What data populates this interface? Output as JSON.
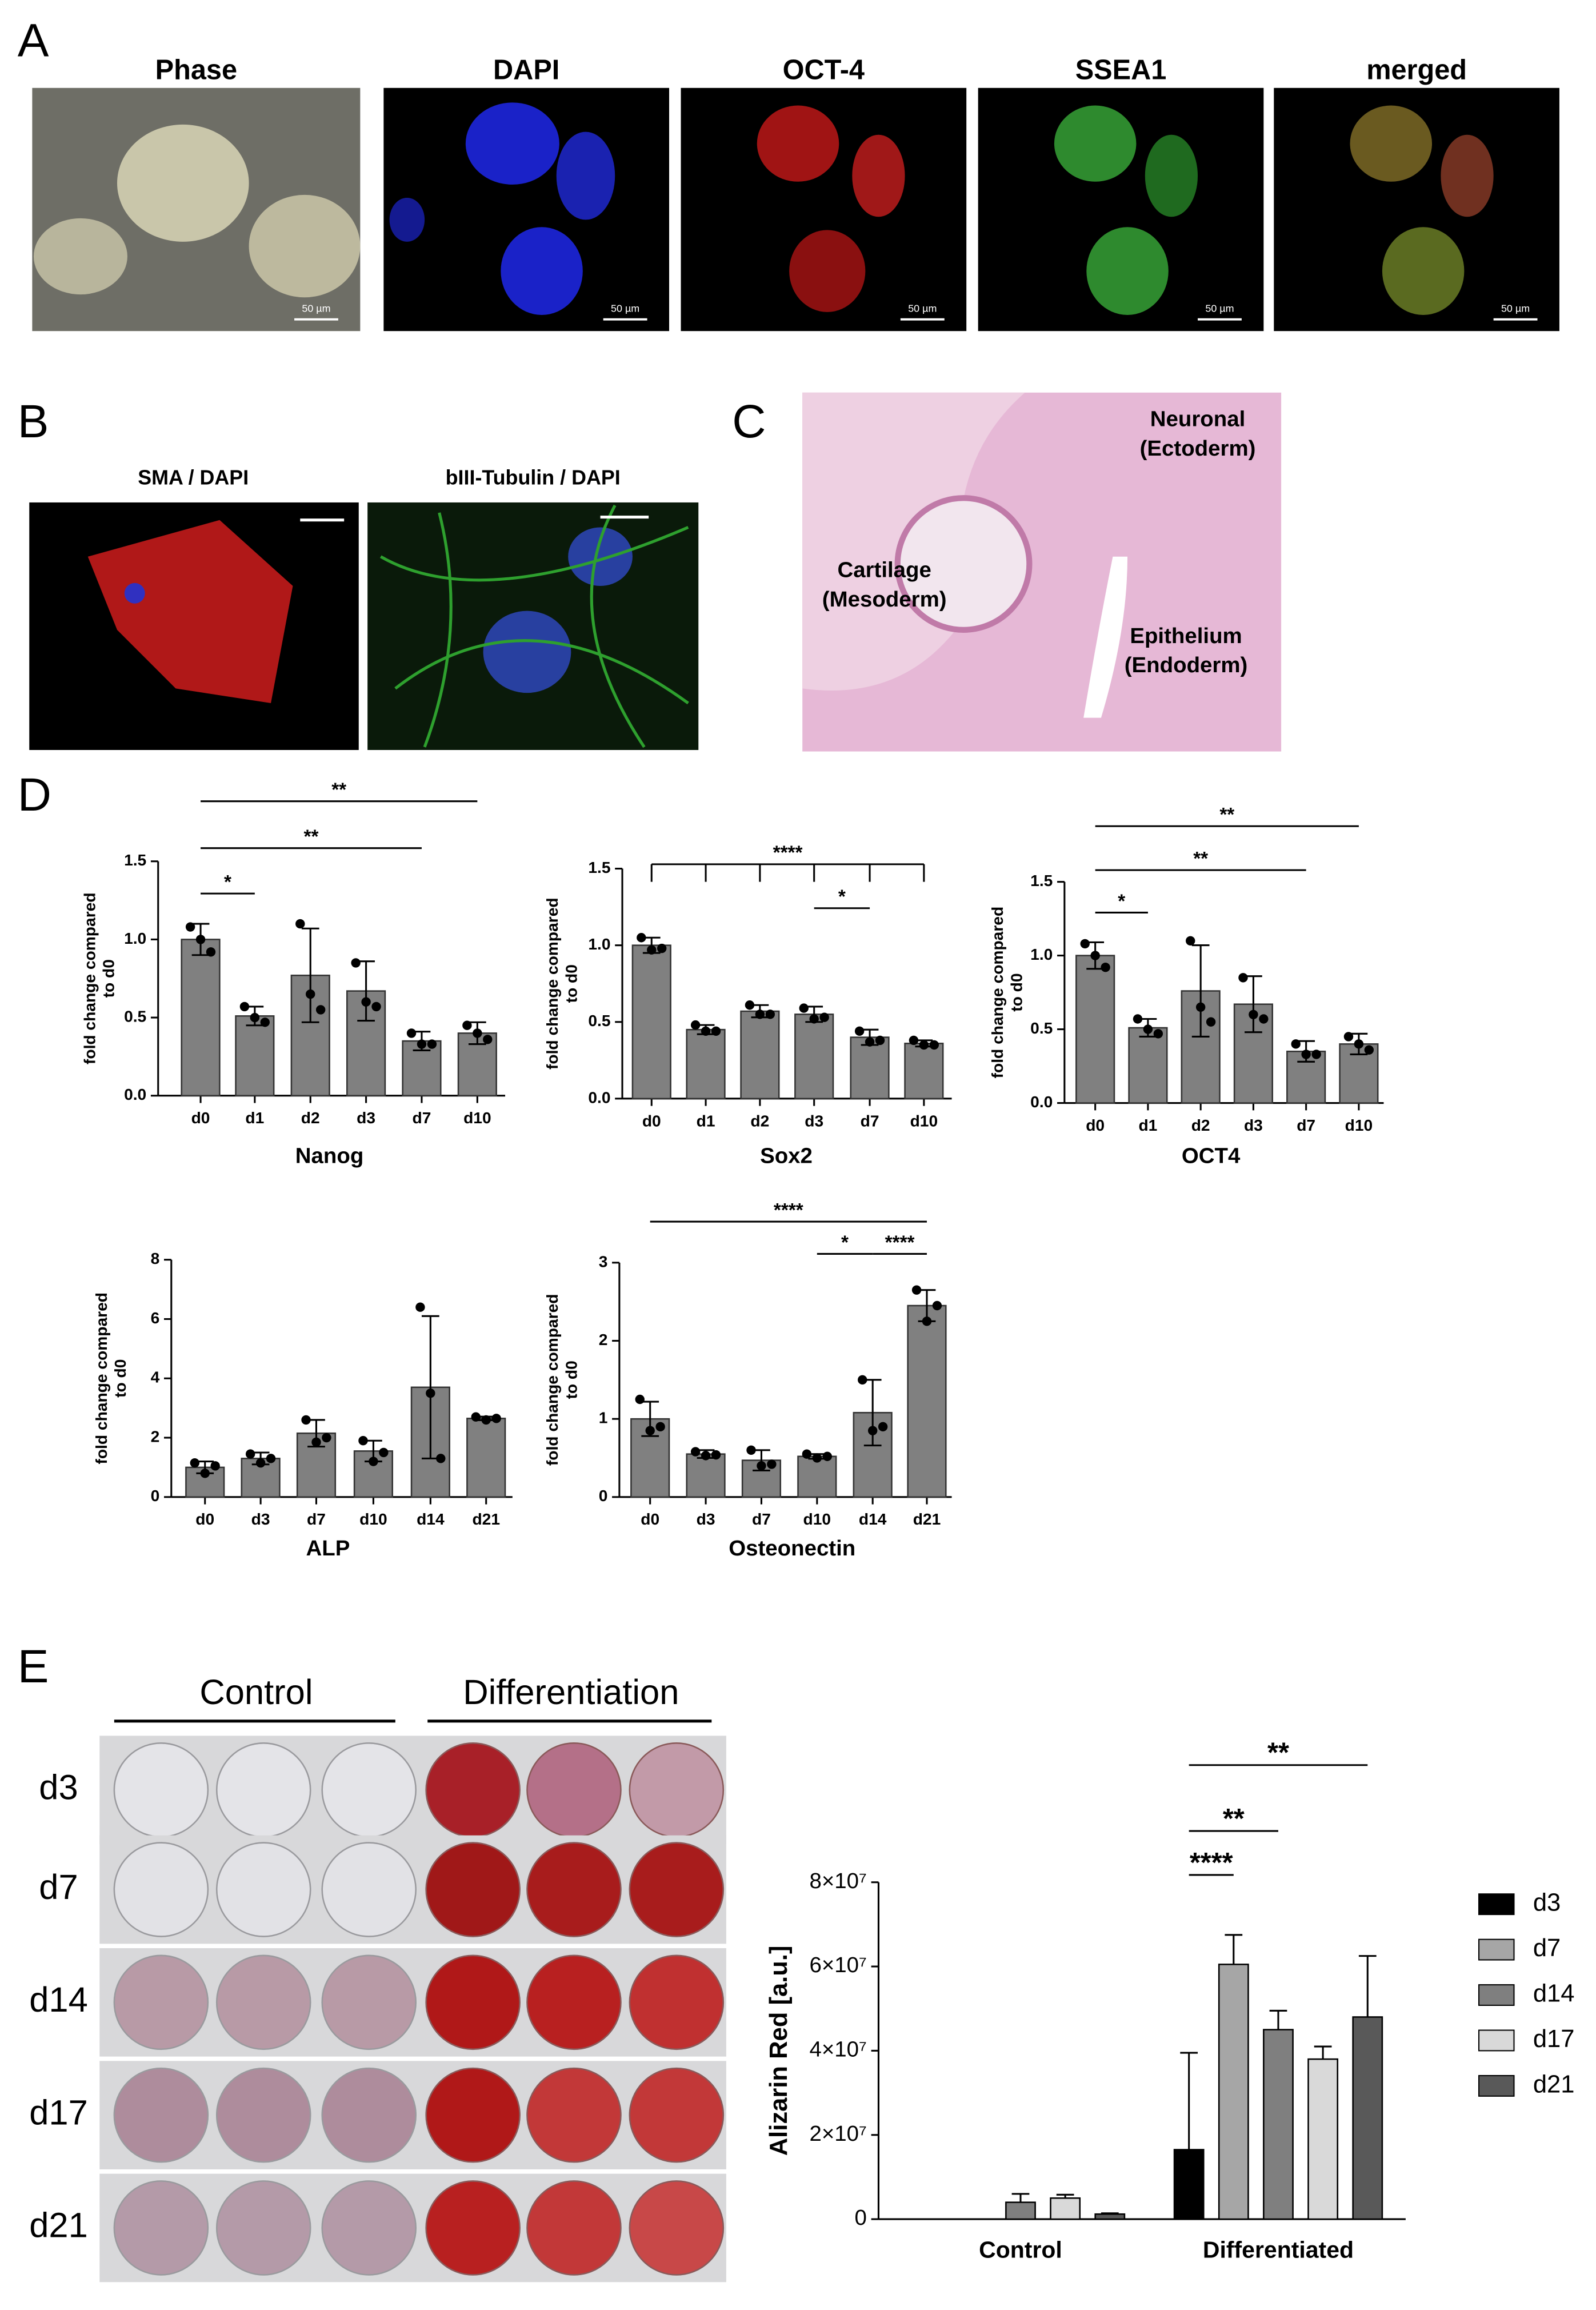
{
  "panels": {
    "A": {
      "label": "A",
      "images": [
        {
          "title": "Phase",
          "scale_bar": "50 µm"
        },
        {
          "title": "DAPI",
          "scale_bar": "50 µm"
        },
        {
          "title": "OCT-4",
          "scale_bar": "50 µm"
        },
        {
          "title": "SSEA1",
          "scale_bar": "50 µm"
        },
        {
          "title": "merged",
          "scale_bar": "50 µm"
        }
      ]
    },
    "B": {
      "label": "B",
      "images": [
        {
          "title": "SMA  / DAPI"
        },
        {
          "title": "bIII-Tubulin  / DAPI"
        }
      ]
    },
    "C": {
      "label": "C",
      "annotations": [
        [
          "Neuronal",
          "(Ectoderm)"
        ],
        [
          "Cartilage",
          "(Mesoderm)"
        ],
        [
          "Epithelium",
          "(Endoderm)"
        ]
      ]
    },
    "D": {
      "label": "D"
    },
    "E": {
      "label": "E",
      "groups": [
        "Control",
        "Differentiation"
      ],
      "rows": [
        "d3",
        "d7",
        "d14",
        "d17",
        "d21"
      ]
    }
  },
  "chart_data": [
    {
      "type": "bar",
      "xlabel": "Nanog",
      "ylabel": [
        "fold change compared",
        "to d0"
      ],
      "color": "#808080",
      "categories": [
        "d0",
        "d1",
        "d2",
        "d3",
        "d7",
        "d10"
      ],
      "values": [
        1.0,
        0.51,
        0.77,
        0.67,
        0.35,
        0.4
      ],
      "errors": [
        0.1,
        0.06,
        0.3,
        0.19,
        0.06,
        0.07
      ],
      "points": [
        [
          1.08,
          1.0,
          0.92
        ],
        [
          0.57,
          0.5,
          0.47
        ],
        [
          1.1,
          0.65,
          0.55
        ],
        [
          0.85,
          0.6,
          0.57
        ],
        [
          0.4,
          0.33,
          0.33
        ],
        [
          0.45,
          0.4,
          0.36
        ]
      ],
      "ylim": [
        0,
        1.5
      ],
      "yticks": [
        {
          "value": 0,
          "label": "0.0"
        },
        0.5,
        {
          "value": 1,
          "label": "1.0"
        },
        1.5
      ],
      "annotations": [
        {
          "label": "*",
          "between": [
            "d0",
            "d1"
          ]
        },
        {
          "label": "**",
          "between": [
            "d0",
            "d7"
          ]
        },
        {
          "label": "**",
          "between": [
            "d0",
            "d10"
          ]
        }
      ]
    },
    {
      "type": "bar",
      "xlabel": "Sox2",
      "ylabel": [
        "fold change compared",
        "to d0"
      ],
      "color": "#808080",
      "categories": [
        "d0",
        "d1",
        "d2",
        "d3",
        "d7",
        "d10"
      ],
      "values": [
        1.0,
        0.45,
        0.57,
        0.55,
        0.4,
        0.36
      ],
      "errors": [
        0.05,
        0.03,
        0.04,
        0.05,
        0.05,
        0.02
      ],
      "points": [
        [
          1.05,
          0.97,
          0.98
        ],
        [
          0.48,
          0.44,
          0.44
        ],
        [
          0.61,
          0.55,
          0.55
        ],
        [
          0.59,
          0.52,
          0.53
        ],
        [
          0.44,
          0.37,
          0.38
        ],
        [
          0.38,
          0.35,
          0.35
        ]
      ],
      "ylim": [
        0,
        1.5
      ],
      "yticks": [
        {
          "value": 0,
          "label": "0.0"
        },
        0.5,
        {
          "value": 1,
          "label": "1.0"
        },
        1.5
      ],
      "annotations": [
        {
          "label": "****",
          "between": [
            "d0",
            "d1",
            "d2",
            "d3",
            "d7",
            "d10"
          ]
        },
        {
          "label": "*",
          "between": [
            "d3",
            "d7"
          ]
        }
      ]
    },
    {
      "type": "bar",
      "xlabel": "OCT4",
      "ylabel": [
        "fold change compared",
        "to d0"
      ],
      "color": "#808080",
      "categories": [
        "d0",
        "d1",
        "d2",
        "d3",
        "d7",
        "d10"
      ],
      "values": [
        1.0,
        0.51,
        0.76,
        0.67,
        0.35,
        0.4
      ],
      "errors": [
        0.09,
        0.06,
        0.31,
        0.19,
        0.07,
        0.07
      ],
      "points": [
        [
          1.08,
          1.0,
          0.92
        ],
        [
          0.57,
          0.5,
          0.47
        ],
        [
          1.1,
          0.65,
          0.55
        ],
        [
          0.85,
          0.6,
          0.57
        ],
        [
          0.4,
          0.33,
          0.33
        ],
        [
          0.45,
          0.4,
          0.36
        ]
      ],
      "ylim": [
        0,
        1.5
      ],
      "yticks": [
        {
          "value": 0,
          "label": "0.0"
        },
        0.5,
        {
          "value": 1,
          "label": "1.0"
        },
        1.5
      ],
      "annotations": [
        {
          "label": "*",
          "between": [
            "d0",
            "d1"
          ]
        },
        {
          "label": "**",
          "between": [
            "d0",
            "d7"
          ]
        },
        {
          "label": "**",
          "between": [
            "d0",
            "d10"
          ]
        }
      ]
    },
    {
      "type": "bar",
      "xlabel": "ALP",
      "ylabel": [
        "fold change compared",
        "to d0"
      ],
      "color": "#808080",
      "categories": [
        "d0",
        "d3",
        "d7",
        "d10",
        "d14",
        "d21"
      ],
      "values": [
        1.0,
        1.3,
        2.15,
        1.55,
        3.7,
        2.65
      ],
      "errors": [
        0.2,
        0.2,
        0.45,
        0.35,
        2.4,
        0.06
      ],
      "points": [
        [
          1.15,
          0.8,
          1.05
        ],
        [
          1.45,
          1.15,
          1.3
        ],
        [
          2.6,
          1.85,
          2.0
        ],
        [
          1.9,
          1.2,
          1.5
        ],
        [
          6.4,
          3.5,
          1.3
        ],
        [
          2.7,
          2.6,
          2.65
        ]
      ],
      "ylim": [
        0,
        8
      ],
      "yticks": [
        0,
        2,
        4,
        6,
        8
      ],
      "annotations": []
    },
    {
      "type": "bar",
      "xlabel": "Osteonectin",
      "ylabel": [
        "fold change compared",
        "to d0"
      ],
      "color": "#808080",
      "categories": [
        "d0",
        "d3",
        "d7",
        "d10",
        "d14",
        "d21"
      ],
      "values": [
        1.0,
        0.55,
        0.47,
        0.52,
        1.08,
        2.45
      ],
      "errors": [
        0.22,
        0.05,
        0.13,
        0.03,
        0.42,
        0.2
      ],
      "points": [
        [
          1.25,
          0.85,
          0.9
        ],
        [
          0.58,
          0.53,
          0.54
        ],
        [
          0.6,
          0.4,
          0.42
        ],
        [
          0.55,
          0.5,
          0.52
        ],
        [
          1.5,
          0.85,
          0.9
        ],
        [
          2.65,
          2.25,
          2.45
        ]
      ],
      "ylim": [
        0,
        3
      ],
      "yticks": [
        0,
        1,
        2,
        3
      ],
      "annotations": [
        {
          "label": "****",
          "between": [
            "d0",
            "d21"
          ]
        },
        {
          "label": "*",
          "between": [
            "d10",
            "d14"
          ]
        },
        {
          "label": "****",
          "between": [
            "d14",
            "d21"
          ]
        }
      ]
    },
    {
      "type": "bar",
      "ylabel": "Alizarin Red [a.u.]",
      "categories": [
        "Control",
        "Differentiated"
      ],
      "series": [
        {
          "name": "d3",
          "color": "#000000",
          "values": [
            0,
            16500000
          ],
          "errors": [
            null,
            23000000
          ]
        },
        {
          "name": "d7",
          "color": "#a6a6a6",
          "values": [
            0,
            60500000
          ],
          "errors": [
            null,
            7000000
          ]
        },
        {
          "name": "d14",
          "color": "#7f7f7f",
          "values": [
            4000000,
            45000000
          ],
          "errors": [
            2000000,
            4500000
          ]
        },
        {
          "name": "d17",
          "color": "#d9d9d9",
          "values": [
            5000000,
            38000000
          ],
          "errors": [
            800000,
            3000000
          ]
        },
        {
          "name": "d21",
          "color": "#595959",
          "values": [
            1200000,
            48000000
          ],
          "errors": [
            200000,
            14500000
          ]
        }
      ],
      "ylim": [
        0,
        80000000
      ],
      "yticks": [
        0,
        {
          "value": 20000000,
          "label": "2×10⁷"
        },
        {
          "value": 40000000,
          "label": "4×10⁷"
        },
        {
          "value": 60000000,
          "label": "6×10⁷"
        },
        {
          "value": 80000000,
          "label": "8×10⁷"
        }
      ],
      "legend": "right",
      "annotations": [
        {
          "label": "****",
          "group": "Differentiated",
          "between": [
            "d3",
            "d7"
          ]
        },
        {
          "label": "**",
          "group": "Differentiated",
          "between": [
            "d3",
            "d14"
          ]
        },
        {
          "label": "**",
          "group": "Differentiated",
          "between": [
            "d3",
            "d21"
          ]
        }
      ]
    }
  ]
}
